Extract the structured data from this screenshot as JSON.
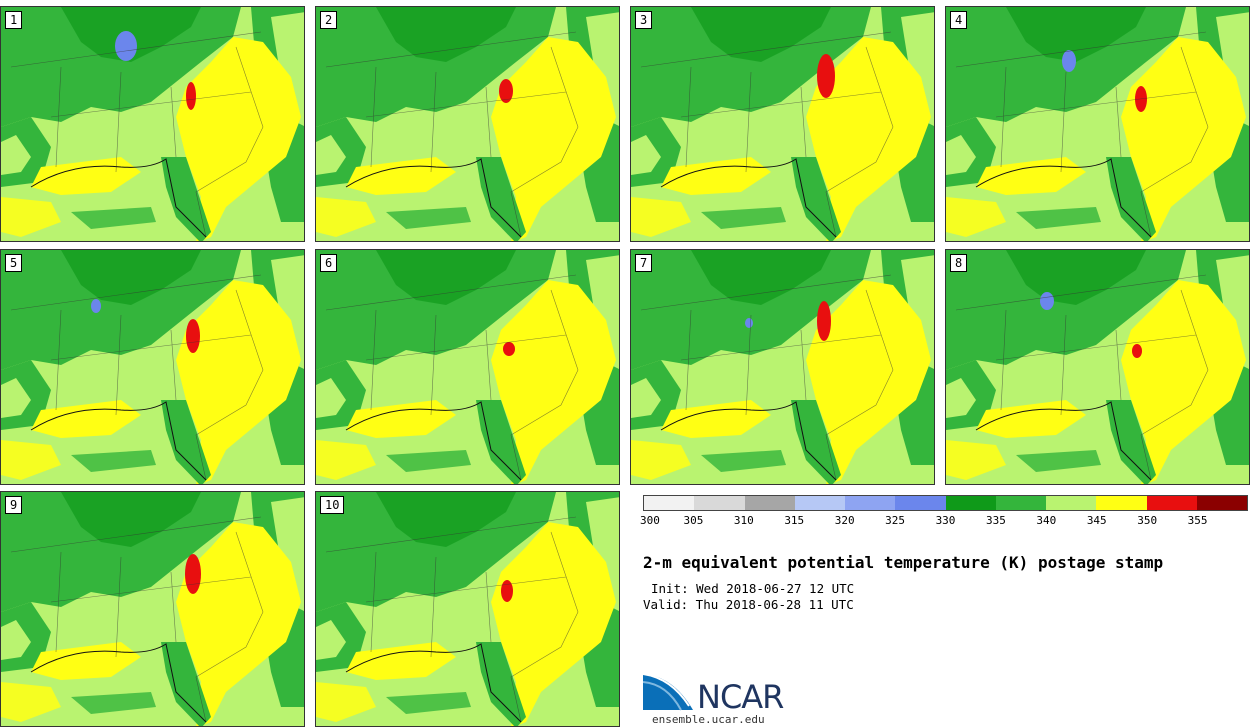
{
  "panels": [
    {
      "label": "1"
    },
    {
      "label": "2"
    },
    {
      "label": "3"
    },
    {
      "label": "4"
    },
    {
      "label": "5"
    },
    {
      "label": "6"
    },
    {
      "label": "7"
    },
    {
      "label": "8"
    },
    {
      "label": "9"
    },
    {
      "label": "10"
    }
  ],
  "colorbar": {
    "colors": [
      "#f2f2f2",
      "#d9d9d9",
      "#a6a6a6",
      "#b6c8f5",
      "#8ea4f2",
      "#6b86ec",
      "#0f9a19",
      "#34b53c",
      "#b9f370",
      "#ffff14",
      "#e80f0f",
      "#8b0000"
    ],
    "ticks": [
      "300",
      "305",
      "310",
      "315",
      "320",
      "325",
      "330",
      "335",
      "340",
      "345",
      "350",
      "355"
    ]
  },
  "map_colors": {
    "green_dark": "#0f9a19",
    "green": "#34b53c",
    "light_green": "#b9f370",
    "yellow": "#ffff14",
    "red": "#e80f0f",
    "blue": "#6b86ec"
  },
  "title": "2-m equivalent potential temperature (K) postage stamp",
  "init": "Init: Wed 2018-06-27 12 UTC",
  "valid": "Valid: Thu 2018-06-28 11 UTC",
  "logo": {
    "text": "NCAR",
    "site": "ensemble.ucar.edu"
  }
}
